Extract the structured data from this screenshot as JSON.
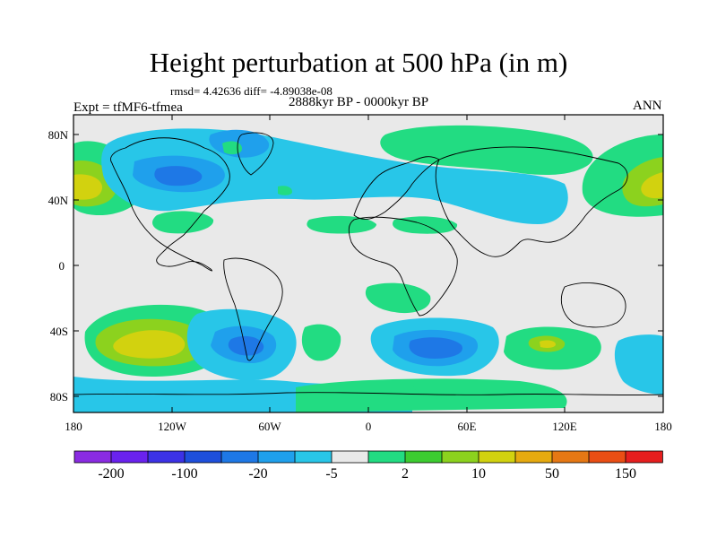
{
  "title": "Height perturbation at 500 hPa (in m)",
  "stats": "rmsd= 4.42636 diff= -4.89038e-08",
  "experiment": "Expt = tfMF6-tfmea",
  "period": "2888kyr BP - 0000kyr BP",
  "season": "ANN",
  "lat_ticks": [
    "80N",
    "40N",
    "0",
    "40S",
    "80S"
  ],
  "lon_ticks": [
    "180",
    "120W",
    "60W",
    "0",
    "60E",
    "120E",
    "180"
  ],
  "colorbar": {
    "labels": [
      "-200",
      "-100",
      "-20",
      "-5",
      "2",
      "10",
      "50",
      "150"
    ],
    "colors": [
      "#8a2be2",
      "#6a22ee",
      "#3c32e6",
      "#1e4fdc",
      "#1e78e6",
      "#1fa0ec",
      "#28c6e8",
      "#e9e9e9",
      "#22dc82",
      "#3ccc30",
      "#8cd21e",
      "#d2d20f",
      "#e6aa0f",
      "#e67814",
      "#ea4e14",
      "#e61e1e"
    ]
  },
  "field_colors": {
    "neutral": "#e9e9e9",
    "neg_light": "#28c6e8",
    "neg_mid": "#1fa0ec",
    "neg_dark": "#1e78e6",
    "pos_light": "#22dc82",
    "pos_mid": "#8cd21e",
    "pos_dark": "#d2d20f"
  }
}
